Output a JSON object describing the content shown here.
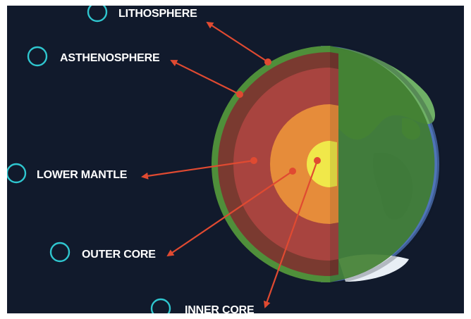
{
  "layers": [
    {
      "id": "lithosphere",
      "label": "LITHOSPHERE"
    },
    {
      "id": "asthenosphere",
      "label": "ASTHENOSPHERE"
    },
    {
      "id": "lower-mantle",
      "label": "LOWER MANTLE"
    },
    {
      "id": "outer-core",
      "label": "OUTER CORE"
    },
    {
      "id": "inner-core",
      "label": "INNER CORE"
    }
  ],
  "colors": {
    "background": "#111a2c",
    "pointer": "#e04a31",
    "radio": "#2fc6cf",
    "crust": "#4f8f3a",
    "asthenosphere": "#7a3a30",
    "lower_mantle": "#a8443f",
    "outer_core": "#e68c3a",
    "inner_core": "#f0e84a",
    "ocean": "#4f74b8",
    "land": "#6fb066"
  }
}
